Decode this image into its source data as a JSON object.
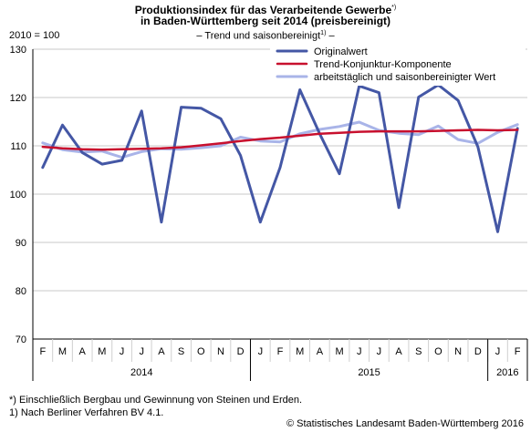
{
  "title_line1": "Produktionsindex für das Verarbeitende Gewerbe",
  "title_line1_mark": "*)",
  "title_line2": "in Baden-Württemberg seit 2014 (preisbereinigt)",
  "subtitle_pre": "– Trend und saisonbereinigt",
  "subtitle_mark": "1)",
  "subtitle_post": " –",
  "y_top_label": "2010 = 100",
  "footnote1": "*) Einschließlich Bergbau und Gewinnung von Steinen und Erden.",
  "footnote2": "1) Nach Berliner Verfahren BV 4.1.",
  "copyright": "© Statistisches Landesamt Baden-Württemberg 2016",
  "chart_data": {
    "type": "line",
    "categories": [
      "F",
      "M",
      "A",
      "M",
      "J",
      "J",
      "A",
      "S",
      "O",
      "N",
      "D",
      "J",
      "F",
      "M",
      "A",
      "M",
      "J",
      "J",
      "A",
      "S",
      "O",
      "N",
      "D",
      "J",
      "F"
    ],
    "years": [
      {
        "label": "2014",
        "start": 0,
        "end": 10
      },
      {
        "label": "2015",
        "start": 11,
        "end": 22
      },
      {
        "label": "2016",
        "start": 23,
        "end": 24
      }
    ],
    "ylim": [
      70,
      130
    ],
    "yticks": [
      70,
      80,
      90,
      100,
      110,
      120,
      130
    ],
    "grid": true,
    "legend_position": "top-right",
    "series": [
      {
        "name": "Originalwert",
        "color": "#4457a5",
        "width": 3,
        "values": [
          105.5,
          114.3,
          108.6,
          106.2,
          107.0,
          117.2,
          94.2,
          118.0,
          117.8,
          115.6,
          108.0,
          94.2,
          105.5,
          121.6,
          112.5,
          104.2,
          122.4,
          121.0,
          97.2,
          120.1,
          122.6,
          119.4,
          109.8,
          92.2,
          113.6
        ]
      },
      {
        "name": "Trend-Konjunktur-Komponente",
        "color": "#c8102e",
        "width": 2.5,
        "values": [
          109.8,
          109.5,
          109.3,
          109.2,
          109.3,
          109.4,
          109.5,
          109.7,
          110.1,
          110.5,
          111.0,
          111.4,
          111.7,
          112.1,
          112.5,
          112.7,
          112.9,
          113.0,
          113.0,
          113.0,
          113.1,
          113.2,
          113.3,
          113.2,
          113.3
        ]
      },
      {
        "name": "arbeitstäglich und saisonbereinigter Wert",
        "color": "#a9b4e8",
        "width": 3,
        "values": [
          110.6,
          109.2,
          108.7,
          108.9,
          107.6,
          108.8,
          109.4,
          109.3,
          109.6,
          110.0,
          111.8,
          111.0,
          110.8,
          112.5,
          113.4,
          114.0,
          114.9,
          113.2,
          112.6,
          112.3,
          114.1,
          111.3,
          110.5,
          112.8,
          114.4
        ]
      }
    ]
  }
}
